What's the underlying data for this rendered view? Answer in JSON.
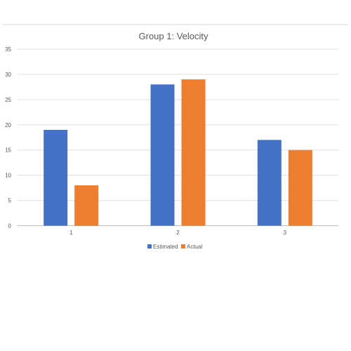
{
  "chart_data": {
    "type": "bar",
    "title": "Group 1: Velocity",
    "xlabel": "",
    "ylabel": "",
    "categories": [
      "1",
      "2",
      "3"
    ],
    "series": [
      {
        "name": "Estimated",
        "color": "#4472C4",
        "values": [
          19,
          28,
          17
        ]
      },
      {
        "name": "Actual",
        "color": "#ED7D31",
        "values": [
          8,
          29,
          15
        ]
      }
    ],
    "ylim": [
      0,
      35
    ],
    "yticks": [
      "0",
      "5",
      "10",
      "15",
      "20",
      "25",
      "30",
      "35"
    ],
    "grid": true,
    "legend": "bottom"
  }
}
